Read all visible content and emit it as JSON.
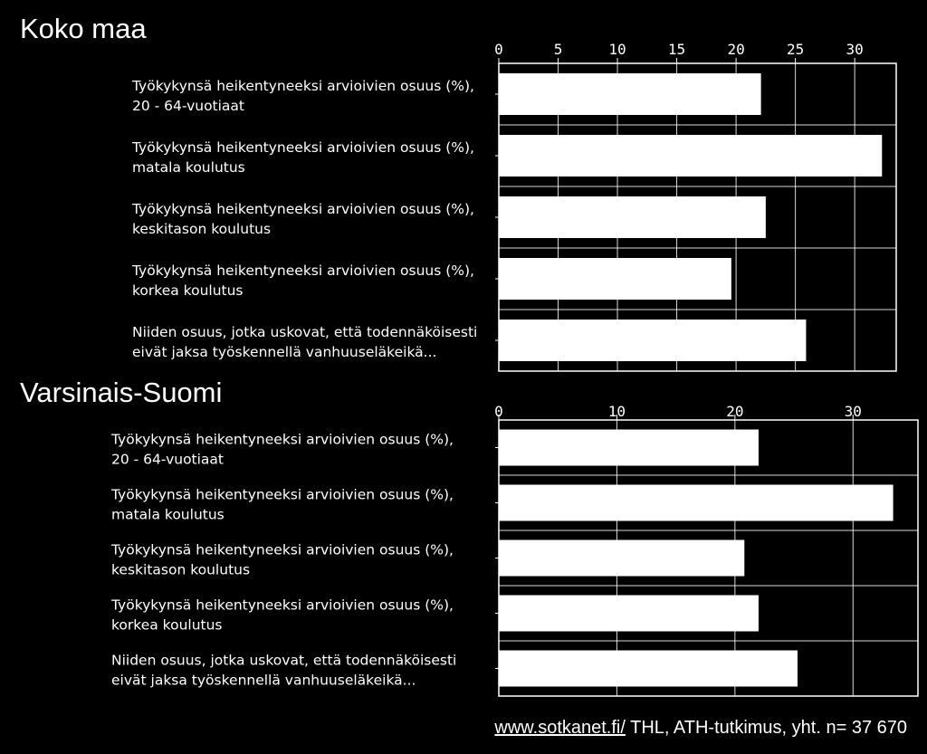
{
  "footer": {
    "link_text": "www.sotkanet.fi/",
    "source_text": " THL, ATH-tutkimus, yht. n= 37 670"
  },
  "chart_data": [
    {
      "type": "bar",
      "orientation": "horizontal",
      "title": "Koko maa",
      "categories": [
        [
          "Työkykynsä heikentyneeksi arvioivien osuus (%),",
          "20 - 64-vuotiaat"
        ],
        [
          "Työkykynsä heikentyneeksi arvioivien osuus (%),",
          "matala koulutus"
        ],
        [
          "Työkykynsä heikentyneeksi arvioivien osuus (%),",
          "keskitason koulutus"
        ],
        [
          "Työkykynsä heikentyneeksi arvioivien osuus (%),",
          "korkea koulutus"
        ],
        [
          "Niiden osuus, jotka uskovat, että todennäköisesti",
          "eivät jaksa työskennellä vanhuuseläkeikä..."
        ]
      ],
      "values": [
        22.1,
        32.3,
        22.5,
        19.6,
        25.9
      ],
      "xlim": [
        0,
        33.5
      ],
      "ticks": [
        0,
        5,
        10,
        15,
        20,
        25,
        30
      ],
      "tick_labels": [
        "0",
        "5",
        "10",
        "15",
        "20",
        "25",
        "30"
      ],
      "grid": true,
      "colors": {
        "bar": "#ffffff",
        "background": "#000000",
        "grid": "#ffffff"
      }
    },
    {
      "type": "bar",
      "orientation": "horizontal",
      "title": "Varsinais-Suomi",
      "categories": [
        [
          "Työkykynsä heikentyneeksi arvioivien osuus (%),",
          "20 - 64-vuotiaat"
        ],
        [
          "Työkykynsä heikentyneeksi arvioivien osuus (%),",
          "matala koulutus"
        ],
        [
          "Työkykynsä heikentyneeksi arvioivien osuus (%),",
          "keskitason koulutus"
        ],
        [
          "Työkykynsä heikentyneeksi arvioivien osuus (%),",
          "korkea koulutus"
        ],
        [
          "Niiden osuus, jotka uskovat, että todennäköisesti",
          "eivät jaksa työskennellä vanhuuseläkeikä..."
        ]
      ],
      "values": [
        22.0,
        33.4,
        20.8,
        22.0,
        25.3
      ],
      "xlim": [
        0,
        35.5
      ],
      "ticks": [
        0,
        10,
        20,
        30
      ],
      "tick_labels": [
        "0",
        "10",
        "20",
        "30"
      ],
      "grid": true,
      "colors": {
        "bar": "#ffffff",
        "background": "#000000",
        "grid": "#ffffff"
      }
    }
  ]
}
